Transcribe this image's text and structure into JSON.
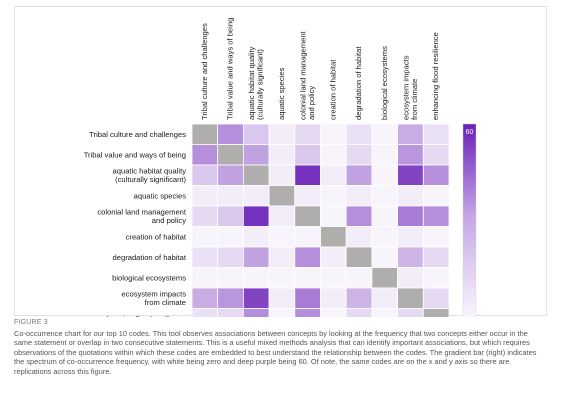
{
  "chart_data": {
    "type": "heatmap",
    "x_categories": [
      [
        "Tribal culture and challenges"
      ],
      [
        "Tribal value and ways of being"
      ],
      [
        "aquatic habitat quality",
        "(culturally significant)"
      ],
      [
        "aquatic species"
      ],
      [
        "colonial land management",
        "and policy"
      ],
      [
        "creation of habitat"
      ],
      [
        "degradation of habitat"
      ],
      [
        "biological ecosystems"
      ],
      [
        "ecosystem impacts",
        "from climate"
      ],
      [
        "enhancing flood resilience"
      ]
    ],
    "y_categories": [
      [
        "Tribal culture and challenges"
      ],
      [
        "Tribal value and ways of being"
      ],
      [
        "aquatic habitat quality",
        "(culturally significant)"
      ],
      [
        "aquatic species"
      ],
      [
        "colonial land management",
        "and policy"
      ],
      [
        "creation of habitat"
      ],
      [
        "degradation of habitat"
      ],
      [
        "biological ecosystems"
      ],
      [
        "ecosystem impacts",
        "from climate"
      ],
      [
        "enhancing flood resilience"
      ]
    ],
    "values": [
      [
        null,
        30,
        15,
        5,
        10,
        3,
        8,
        3,
        22,
        8
      ],
      [
        30,
        null,
        25,
        5,
        15,
        3,
        10,
        3,
        28,
        10
      ],
      [
        15,
        25,
        null,
        5,
        55,
        5,
        25,
        3,
        50,
        30
      ],
      [
        5,
        5,
        5,
        null,
        5,
        3,
        5,
        3,
        5,
        3
      ],
      [
        10,
        15,
        55,
        5,
        null,
        3,
        30,
        3,
        35,
        30
      ],
      [
        3,
        3,
        5,
        3,
        3,
        null,
        5,
        3,
        5,
        3
      ],
      [
        8,
        10,
        25,
        5,
        30,
        5,
        null,
        3,
        20,
        10
      ],
      [
        3,
        3,
        3,
        3,
        3,
        3,
        3,
        null,
        5,
        3
      ],
      [
        22,
        28,
        50,
        5,
        35,
        5,
        20,
        5,
        null,
        10
      ],
      [
        8,
        10,
        30,
        3,
        30,
        3,
        10,
        3,
        10,
        null
      ]
    ],
    "diagonal_color": "#b0adad",
    "colorscale": {
      "min": 0,
      "max": 60,
      "min_color": "#ffffff",
      "max_color": "#6a1fb8"
    },
    "colorbar_ticks": [
      "60",
      "0"
    ]
  },
  "caption": {
    "label": "FIGURE 3",
    "text": "Co-occurrence chart for our top 10 codes. This tool observes associations between concepts by looking at the frequency that two concepts either occur in the same statement or overlap in two consecutive statements. This is a useful mixed methods analysis that can identify important associations, but which requires observations of the quotations within which these codes are embedded to best understand the relationship between the codes. The gradient bar (right) indicates the spectrum of co-occurrence frequency, with white being zero and deep purple being 60. Of note, the same codes are on the x and y axis so there are replications across this figure."
  }
}
